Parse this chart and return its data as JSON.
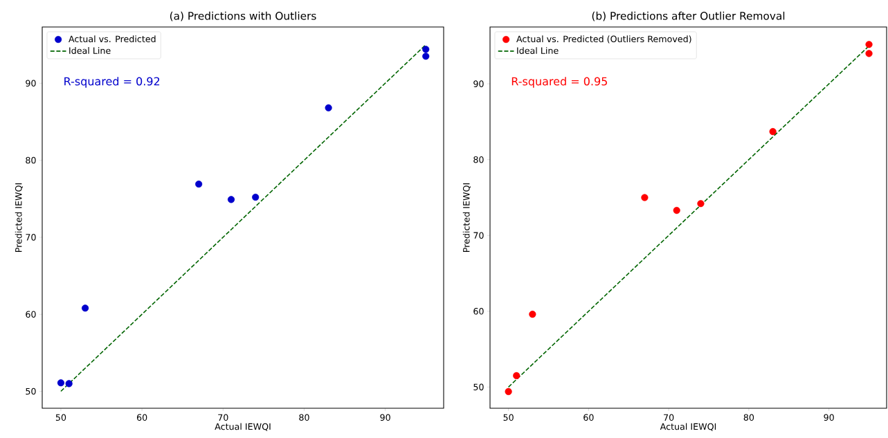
{
  "chart_data": [
    {
      "type": "scatter",
      "title": "(a) Predictions with Outliers",
      "xlabel": "Actual IEWQI",
      "ylabel": "Predicted IEWQI",
      "xlim": [
        47.7,
        97.2
      ],
      "ylim": [
        47.8,
        97.3
      ],
      "xticks": [
        50,
        60,
        70,
        80,
        90
      ],
      "yticks": [
        50,
        60,
        70,
        80,
        90
      ],
      "legend": "top left",
      "annotations": [
        "R-squared = 0.92"
      ],
      "series": [
        {
          "name": "Actual vs. Predicted",
          "color": "#0000cc",
          "x": [
            50,
            51,
            53,
            67,
            71,
            74,
            83,
            95,
            95
          ],
          "values": [
            51.1,
            51.0,
            60.8,
            76.9,
            74.9,
            75.2,
            86.8,
            94.4,
            93.5
          ]
        },
        {
          "name": "Ideal Line",
          "type": "line",
          "color": "#006400",
          "line_style": "dashed",
          "x": [
            50,
            95
          ],
          "values": [
            50,
            95
          ]
        }
      ]
    },
    {
      "type": "scatter",
      "title": "(b) Predictions after Outlier Removal",
      "xlabel": "Actual IEWQI",
      "ylabel": "Predicted IEWQI",
      "xlim": [
        47.7,
        97.2
      ],
      "ylim": [
        47.2,
        97.5
      ],
      "xticks": [
        50,
        60,
        70,
        80,
        90
      ],
      "yticks": [
        50,
        60,
        70,
        80,
        90
      ],
      "legend": "top left",
      "annotations": [
        "R-squared = 0.95"
      ],
      "series": [
        {
          "name": "Actual vs. Predicted (Outliers Removed)",
          "color": "#ff0000",
          "x": [
            50,
            51,
            53,
            67,
            71,
            74,
            83,
            95,
            95
          ],
          "values": [
            49.4,
            51.5,
            59.6,
            75.0,
            73.3,
            74.2,
            83.7,
            95.2,
            94.0
          ]
        },
        {
          "name": "Ideal Line",
          "type": "line",
          "color": "#006400",
          "line_style": "dashed",
          "x": [
            50,
            95
          ],
          "values": [
            50,
            95
          ]
        }
      ]
    }
  ]
}
